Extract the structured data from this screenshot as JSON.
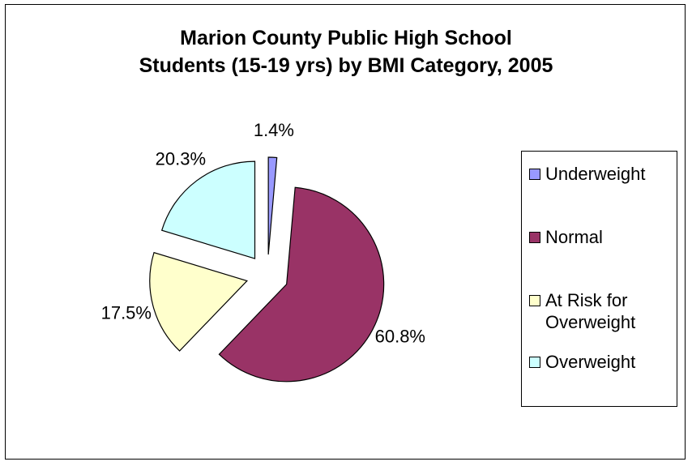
{
  "chart_data": {
    "type": "pie",
    "title": "Marion  County Public High School\nStudents (15-19 yrs) by BMI Category, 2005",
    "title_lines": [
      "Marion  County Public High School",
      "Students (15-19 yrs) by BMI Category, 2005"
    ],
    "categories": [
      "Underweight",
      "Normal",
      "At Risk for Overweight",
      "Overweight"
    ],
    "legend_lines": [
      [
        "Underweight"
      ],
      [
        "Normal"
      ],
      [
        "At Risk for",
        "Overweight"
      ],
      [
        "Overweight"
      ]
    ],
    "values": [
      1.4,
      60.8,
      17.5,
      20.3
    ],
    "labels": [
      "1.4%",
      "60.8%",
      "17.5%",
      "20.3%"
    ],
    "colors": [
      "#9999ff",
      "#993366",
      "#ffffcc",
      "#ccffff"
    ],
    "legend_position": "right",
    "exploded": true
  }
}
